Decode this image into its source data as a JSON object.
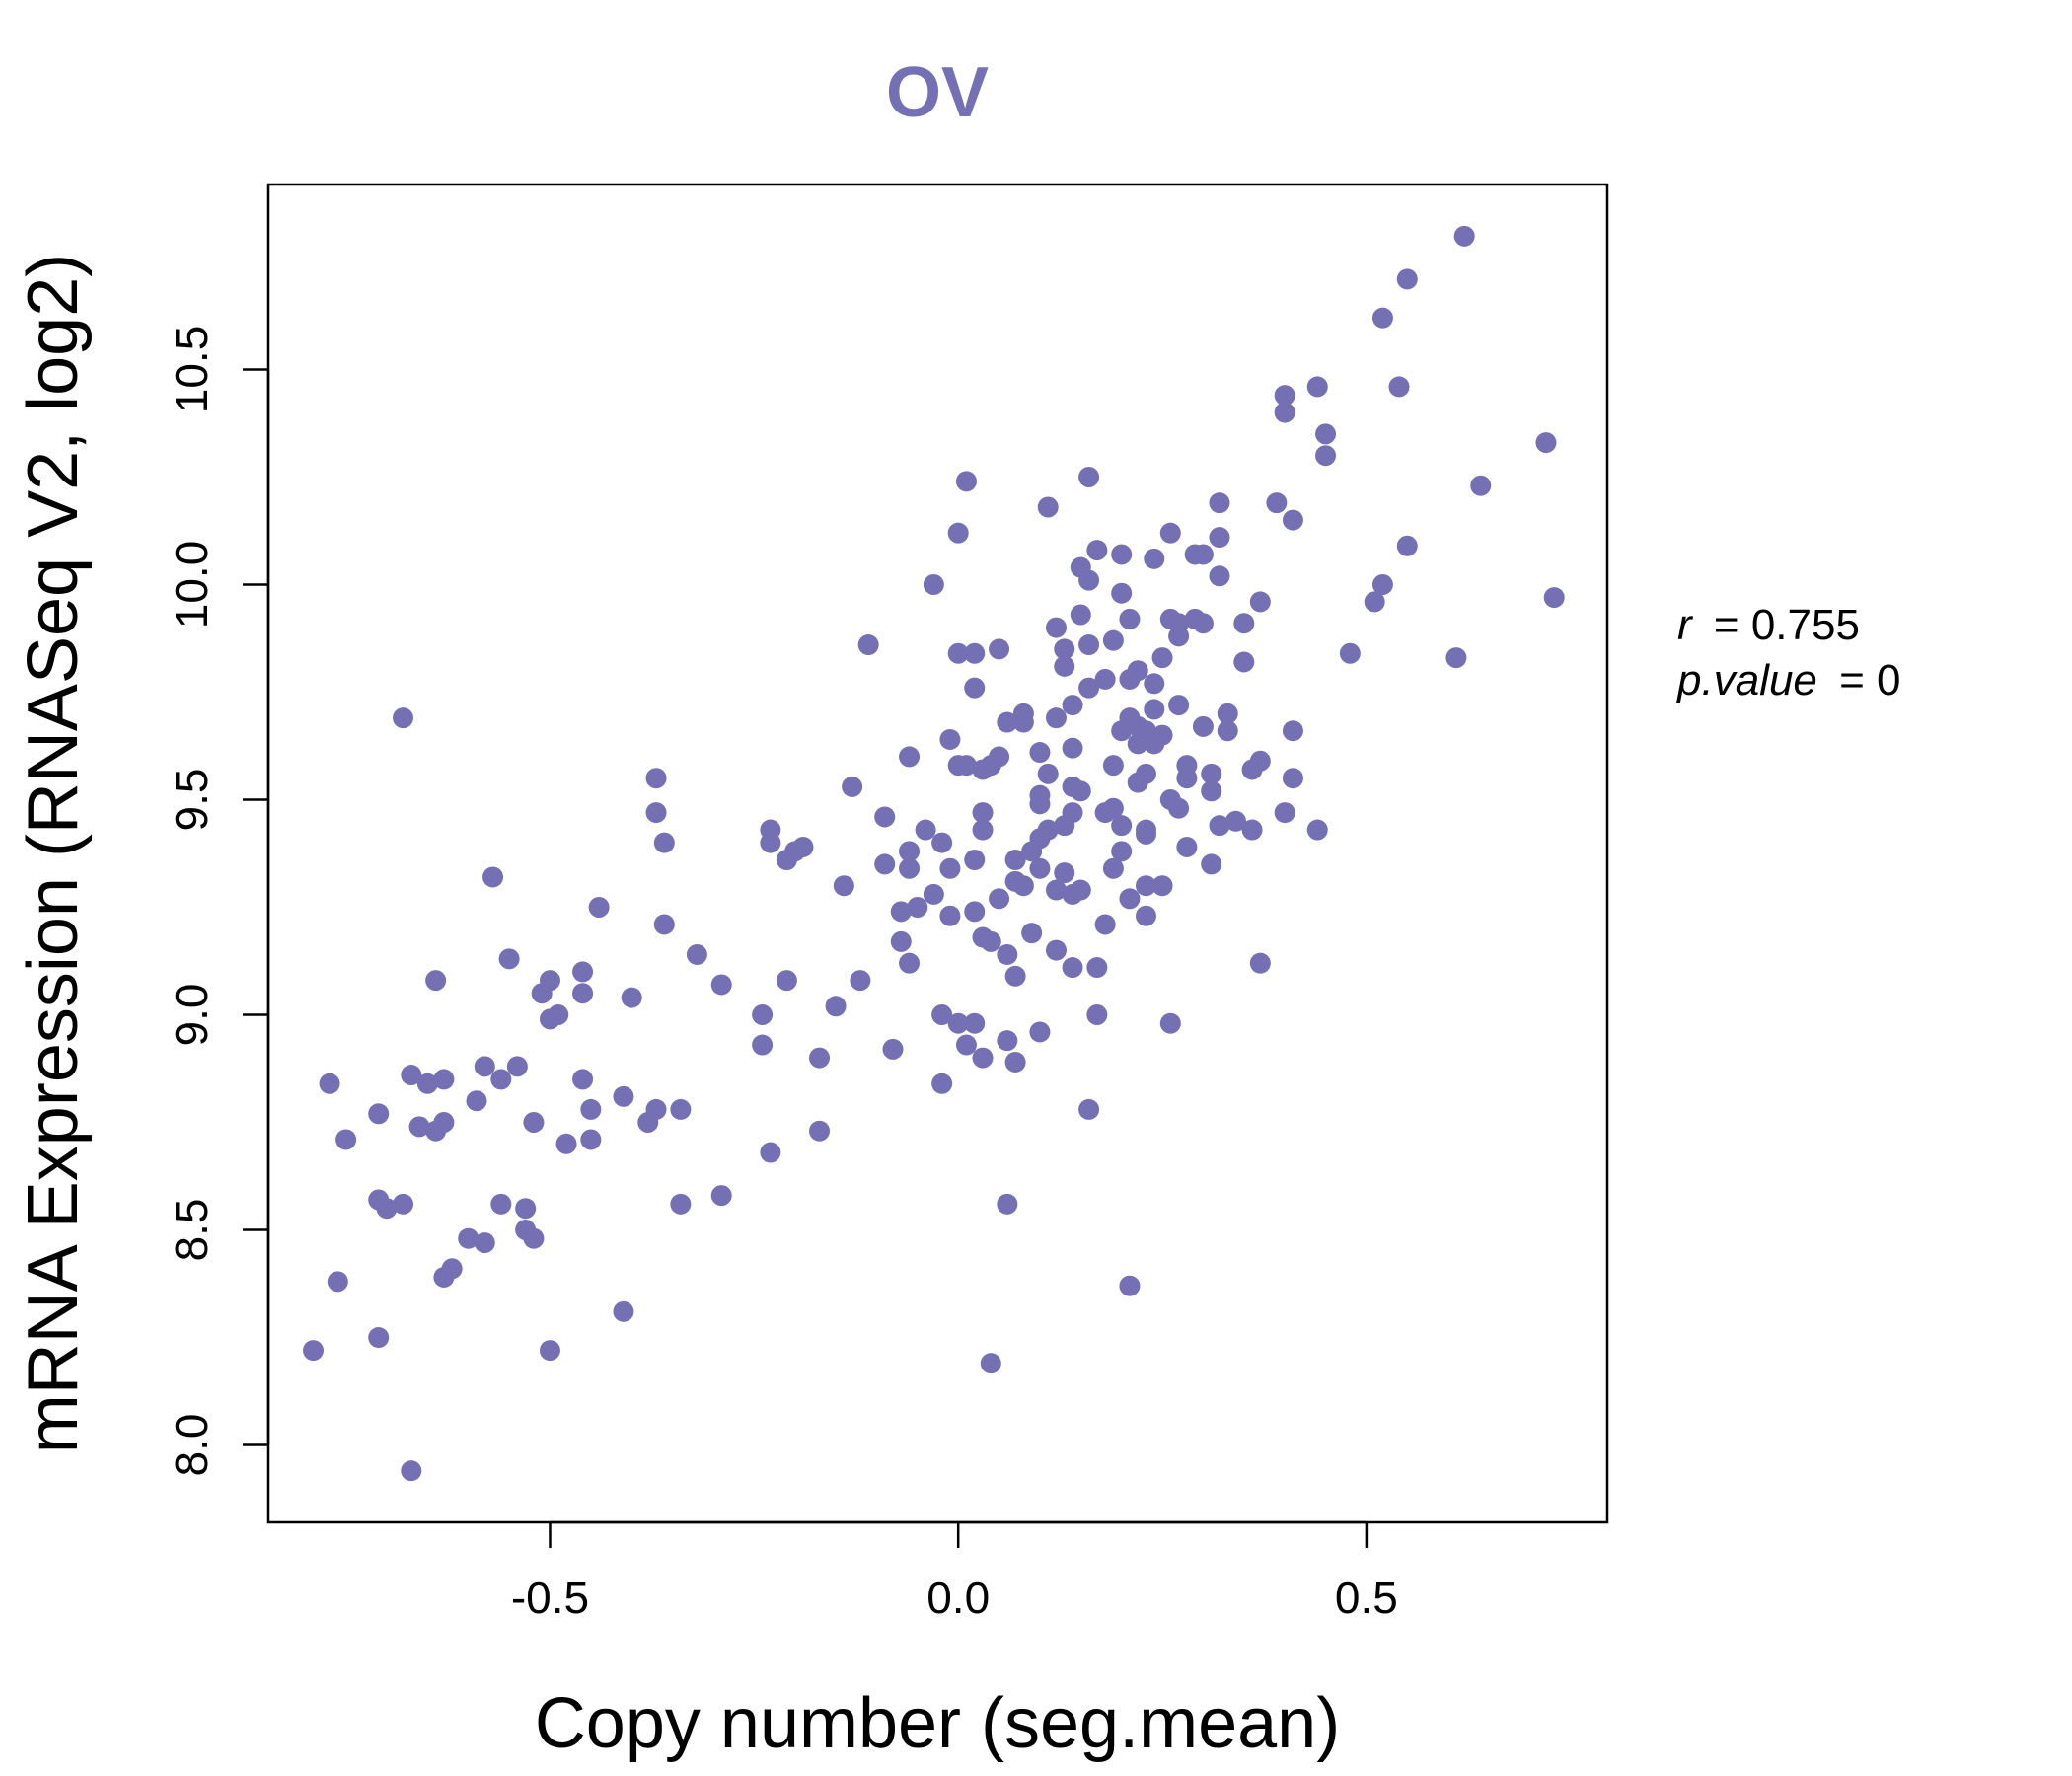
{
  "chart_data": {
    "type": "scatter",
    "title": "OV",
    "xlabel": "Copy number (seg.mean)",
    "ylabel": "mRNA Expression (RNASeq V2, log2)",
    "xlim": [
      -0.845,
      0.795
    ],
    "ylim": [
      7.82,
      10.93
    ],
    "xticks": [
      -0.5,
      0.0,
      0.5
    ],
    "xtick_labels": [
      "-0.5",
      "0.0",
      "0.5"
    ],
    "yticks": [
      8.0,
      8.5,
      9.0,
      9.5,
      10.0,
      10.5
    ],
    "ytick_labels": [
      "8.0",
      "8.5",
      "9.0",
      "9.5",
      "10.0",
      "10.5"
    ],
    "point_color": "#7570B3",
    "stats": {
      "r_label": "r",
      "r_value": "0.755",
      "p_label": "p.value",
      "p_value": "0"
    },
    "points": [
      [
        -0.79,
        8.22
      ],
      [
        -0.77,
        8.84
      ],
      [
        -0.76,
        8.38
      ],
      [
        -0.75,
        8.71
      ],
      [
        -0.71,
        8.77
      ],
      [
        -0.71,
        8.57
      ],
      [
        -0.71,
        8.25
      ],
      [
        -0.7,
        8.55
      ],
      [
        -0.68,
        8.56
      ],
      [
        -0.68,
        9.69
      ],
      [
        -0.67,
        8.86
      ],
      [
        -0.67,
        7.94
      ],
      [
        -0.66,
        8.74
      ],
      [
        -0.65,
        8.84
      ],
      [
        -0.64,
        8.73
      ],
      [
        -0.64,
        9.08
      ],
      [
        -0.63,
        8.85
      ],
      [
        -0.63,
        8.75
      ],
      [
        -0.63,
        8.39
      ],
      [
        -0.62,
        8.41
      ],
      [
        -0.6,
        8.48
      ],
      [
        -0.59,
        8.8
      ],
      [
        -0.58,
        8.88
      ],
      [
        -0.58,
        8.47
      ],
      [
        -0.57,
        9.32
      ],
      [
        -0.56,
        8.56
      ],
      [
        -0.56,
        8.85
      ],
      [
        -0.55,
        9.13
      ],
      [
        -0.54,
        8.88
      ],
      [
        -0.53,
        8.55
      ],
      [
        -0.53,
        8.5
      ],
      [
        -0.52,
        8.75
      ],
      [
        -0.52,
        8.48
      ],
      [
        -0.51,
        9.05
      ],
      [
        -0.5,
        9.08
      ],
      [
        -0.5,
        8.99
      ],
      [
        -0.5,
        8.22
      ],
      [
        -0.49,
        9.0
      ],
      [
        -0.48,
        8.7
      ],
      [
        -0.46,
        9.1
      ],
      [
        -0.46,
        9.05
      ],
      [
        -0.46,
        8.85
      ],
      [
        -0.45,
        8.78
      ],
      [
        -0.45,
        8.71
      ],
      [
        -0.44,
        9.25
      ],
      [
        -0.41,
        8.81
      ],
      [
        -0.41,
        8.31
      ],
      [
        -0.4,
        9.04
      ],
      [
        -0.38,
        8.75
      ],
      [
        -0.37,
        8.78
      ],
      [
        -0.37,
        9.55
      ],
      [
        -0.37,
        9.47
      ],
      [
        -0.36,
        9.4
      ],
      [
        -0.36,
        9.21
      ],
      [
        -0.34,
        8.78
      ],
      [
        -0.34,
        8.56
      ],
      [
        -0.32,
        9.14
      ],
      [
        -0.29,
        9.07
      ],
      [
        -0.29,
        8.58
      ],
      [
        -0.24,
        9.0
      ],
      [
        -0.24,
        8.93
      ],
      [
        -0.23,
        9.43
      ],
      [
        -0.23,
        9.4
      ],
      [
        -0.23,
        8.68
      ],
      [
        -0.21,
        9.36
      ],
      [
        -0.21,
        9.08
      ],
      [
        -0.2,
        9.38
      ],
      [
        -0.19,
        9.39
      ],
      [
        -0.17,
        8.9
      ],
      [
        -0.17,
        8.73
      ],
      [
        -0.15,
        9.02
      ],
      [
        -0.14,
        9.3
      ],
      [
        -0.13,
        9.53
      ],
      [
        -0.12,
        9.08
      ],
      [
        -0.11,
        9.86
      ],
      [
        -0.09,
        9.46
      ],
      [
        -0.09,
        9.35
      ],
      [
        -0.08,
        8.92
      ],
      [
        -0.07,
        9.24
      ],
      [
        -0.07,
        9.17
      ],
      [
        -0.06,
        9.6
      ],
      [
        -0.06,
        9.38
      ],
      [
        -0.06,
        9.34
      ],
      [
        -0.06,
        9.12
      ],
      [
        -0.05,
        9.25
      ],
      [
        -0.04,
        9.43
      ],
      [
        -0.03,
        9.28
      ],
      [
        -0.03,
        10.0
      ],
      [
        -0.02,
        9.4
      ],
      [
        -0.02,
        9.0
      ],
      [
        -0.02,
        8.84
      ],
      [
        -0.01,
        9.64
      ],
      [
        -0.01,
        9.34
      ],
      [
        -0.01,
        9.23
      ],
      [
        0.0,
        10.12
      ],
      [
        0.0,
        9.84
      ],
      [
        0.0,
        9.58
      ],
      [
        0.0,
        8.98
      ],
      [
        0.01,
        8.93
      ],
      [
        0.01,
        10.24
      ],
      [
        0.01,
        9.58
      ],
      [
        0.02,
        8.98
      ],
      [
        0.02,
        9.84
      ],
      [
        0.02,
        9.76
      ],
      [
        0.02,
        9.36
      ],
      [
        0.02,
        9.24
      ],
      [
        0.03,
        9.18
      ],
      [
        0.03,
        8.9
      ],
      [
        0.03,
        9.57
      ],
      [
        0.03,
        9.43
      ],
      [
        0.03,
        9.47
      ],
      [
        0.04,
        8.19
      ],
      [
        0.04,
        9.58
      ],
      [
        0.04,
        9.17
      ],
      [
        0.05,
        9.6
      ],
      [
        0.05,
        9.27
      ],
      [
        0.05,
        9.85
      ],
      [
        0.06,
        9.68
      ],
      [
        0.06,
        9.14
      ],
      [
        0.06,
        8.94
      ],
      [
        0.06,
        8.56
      ],
      [
        0.07,
        8.89
      ],
      [
        0.07,
        9.31
      ],
      [
        0.07,
        9.09
      ],
      [
        0.07,
        9.36
      ],
      [
        0.08,
        9.3
      ],
      [
        0.08,
        9.68
      ],
      [
        0.08,
        9.7
      ],
      [
        0.09,
        9.38
      ],
      [
        0.09,
        9.19
      ],
      [
        0.1,
        9.41
      ],
      [
        0.1,
        9.61
      ],
      [
        0.1,
        9.51
      ],
      [
        0.1,
        9.49
      ],
      [
        0.1,
        9.34
      ],
      [
        0.1,
        8.96
      ],
      [
        0.11,
        9.56
      ],
      [
        0.11,
        10.18
      ],
      [
        0.11,
        9.43
      ],
      [
        0.12,
        9.9
      ],
      [
        0.12,
        9.69
      ],
      [
        0.12,
        9.29
      ],
      [
        0.12,
        9.15
      ],
      [
        0.13,
        9.85
      ],
      [
        0.13,
        9.81
      ],
      [
        0.13,
        9.33
      ],
      [
        0.13,
        9.44
      ],
      [
        0.14,
        9.72
      ],
      [
        0.14,
        9.62
      ],
      [
        0.14,
        9.53
      ],
      [
        0.14,
        9.47
      ],
      [
        0.14,
        9.28
      ],
      [
        0.14,
        9.11
      ],
      [
        0.15,
        9.93
      ],
      [
        0.15,
        10.04
      ],
      [
        0.15,
        9.52
      ],
      [
        0.15,
        9.29
      ],
      [
        0.16,
        9.76
      ],
      [
        0.16,
        10.25
      ],
      [
        0.16,
        10.01
      ],
      [
        0.16,
        9.86
      ],
      [
        0.16,
        8.78
      ],
      [
        0.17,
        10.08
      ],
      [
        0.17,
        9.11
      ],
      [
        0.17,
        9.0
      ],
      [
        0.18,
        9.78
      ],
      [
        0.18,
        9.47
      ],
      [
        0.18,
        9.21
      ],
      [
        0.19,
        9.87
      ],
      [
        0.19,
        9.58
      ],
      [
        0.19,
        9.48
      ],
      [
        0.19,
        9.34
      ],
      [
        0.2,
        9.38
      ],
      [
        0.2,
        9.98
      ],
      [
        0.2,
        9.66
      ],
      [
        0.2,
        9.44
      ],
      [
        0.2,
        10.07
      ],
      [
        0.21,
        9.92
      ],
      [
        0.21,
        9.69
      ],
      [
        0.21,
        9.78
      ],
      [
        0.21,
        9.27
      ],
      [
        0.21,
        8.37
      ],
      [
        0.22,
        9.63
      ],
      [
        0.22,
        9.54
      ],
      [
        0.22,
        9.67
      ],
      [
        0.22,
        9.8
      ],
      [
        0.23,
        9.66
      ],
      [
        0.23,
        9.42
      ],
      [
        0.23,
        9.43
      ],
      [
        0.23,
        9.56
      ],
      [
        0.23,
        9.23
      ],
      [
        0.23,
        9.3
      ],
      [
        0.24,
        9.77
      ],
      [
        0.24,
        9.71
      ],
      [
        0.24,
        9.63
      ],
      [
        0.24,
        10.06
      ],
      [
        0.25,
        9.65
      ],
      [
        0.25,
        9.3
      ],
      [
        0.25,
        9.83
      ],
      [
        0.26,
        10.12
      ],
      [
        0.26,
        9.92
      ],
      [
        0.26,
        9.5
      ],
      [
        0.26,
        8.98
      ],
      [
        0.27,
        9.48
      ],
      [
        0.27,
        9.72
      ],
      [
        0.27,
        9.91
      ],
      [
        0.27,
        9.88
      ],
      [
        0.28,
        9.39
      ],
      [
        0.28,
        9.55
      ],
      [
        0.28,
        9.58
      ],
      [
        0.29,
        9.92
      ],
      [
        0.29,
        10.07
      ],
      [
        0.3,
        9.91
      ],
      [
        0.3,
        10.07
      ],
      [
        0.3,
        9.67
      ],
      [
        0.31,
        9.56
      ],
      [
        0.31,
        9.35
      ],
      [
        0.31,
        9.52
      ],
      [
        0.32,
        9.44
      ],
      [
        0.32,
        10.19
      ],
      [
        0.32,
        10.02
      ],
      [
        0.32,
        10.11
      ],
      [
        0.33,
        9.66
      ],
      [
        0.33,
        9.7
      ],
      [
        0.34,
        9.45
      ],
      [
        0.35,
        9.91
      ],
      [
        0.35,
        9.82
      ],
      [
        0.36,
        9.43
      ],
      [
        0.36,
        9.57
      ],
      [
        0.37,
        9.96
      ],
      [
        0.37,
        9.59
      ],
      [
        0.37,
        9.12
      ],
      [
        0.39,
        10.19
      ],
      [
        0.4,
        10.44
      ],
      [
        0.4,
        10.4
      ],
      [
        0.4,
        9.47
      ],
      [
        0.41,
        9.66
      ],
      [
        0.41,
        9.55
      ],
      [
        0.41,
        10.15
      ],
      [
        0.44,
        10.46
      ],
      [
        0.44,
        9.43
      ],
      [
        0.45,
        10.35
      ],
      [
        0.45,
        10.3
      ],
      [
        0.48,
        9.84
      ],
      [
        0.51,
        9.96
      ],
      [
        0.52,
        10.62
      ],
      [
        0.52,
        10.0
      ],
      [
        0.54,
        10.46
      ],
      [
        0.55,
        10.71
      ],
      [
        0.55,
        10.09
      ],
      [
        0.61,
        9.83
      ],
      [
        0.62,
        10.81
      ],
      [
        0.64,
        10.23
      ],
      [
        0.72,
        10.33
      ],
      [
        0.73,
        9.97
      ]
    ]
  }
}
